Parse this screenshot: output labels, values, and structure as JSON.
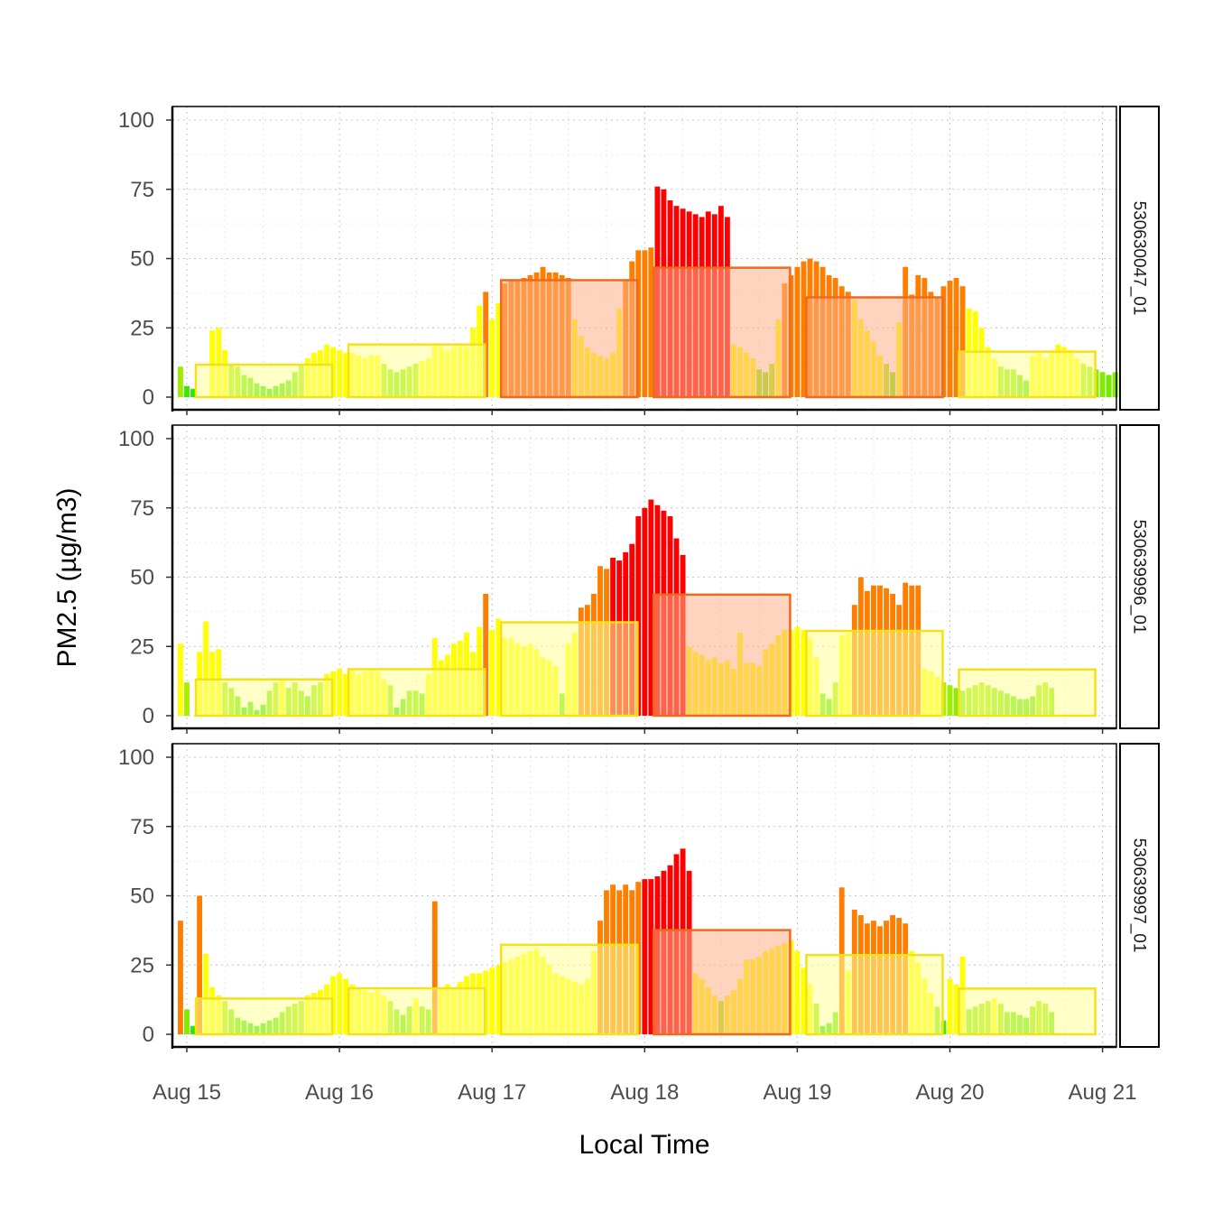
{
  "chart_data": {
    "type": "bar",
    "xlabel": "Local Time",
    "ylabel": "PM2.5 (µg/m3)",
    "ylim": [
      0,
      100
    ],
    "y_ticks": [
      "0",
      "25",
      "50",
      "75",
      "100"
    ],
    "x_ticks": [
      "Aug 15",
      "Aug 16",
      "Aug 17",
      "Aug 18",
      "Aug 19",
      "Aug 20",
      "Aug 21"
    ],
    "x_range_days": [
      -0.1,
      6.1
    ],
    "grid": true,
    "colors": {
      "good": "#00e400",
      "moderate": "#ffff00",
      "usg": "#ff7e00",
      "unhealthy": "#ff0000",
      "daily_fill": {
        "moderate": "#ffff99",
        "usg": "#ffb089"
      },
      "daily_border": {
        "moderate": "#f2e21a",
        "usg": "#ef6a1c"
      }
    },
    "panels": [
      {
        "name": "530630047_01",
        "daily_means": [
          11.7,
          19.0,
          42.2,
          46.7,
          36.0,
          16.4
        ],
        "hourly": [
          11,
          4,
          3,
          null,
          null,
          24,
          25,
          17,
          12,
          11,
          8,
          7,
          5,
          4,
          3,
          4,
          5,
          6,
          9,
          12,
          14,
          16,
          17,
          19,
          18,
          17,
          16,
          16,
          15,
          14,
          15,
          15,
          12,
          10,
          9,
          10,
          11,
          12,
          13,
          14,
          19,
          18,
          17,
          18,
          19,
          18,
          25,
          33,
          38,
          28,
          34,
          41,
          42,
          42,
          43,
          44,
          45,
          47,
          45,
          45,
          44,
          43,
          28,
          22,
          18,
          16,
          15,
          14,
          16,
          32,
          42,
          49,
          53,
          53,
          54,
          76,
          75,
          71,
          69,
          68,
          67,
          66,
          65,
          67,
          66,
          69,
          65,
          19,
          18,
          16,
          14,
          10,
          9,
          12,
          28,
          41,
          44,
          47,
          49,
          50,
          49,
          47,
          44,
          43,
          40,
          38,
          35,
          28,
          24,
          20,
          15,
          12,
          9,
          27,
          47,
          37,
          44,
          43,
          38,
          36,
          40,
          42,
          43,
          40,
          32,
          31,
          25,
          18,
          14,
          11,
          10,
          10,
          8,
          6,
          15,
          16,
          14,
          16,
          19,
          18,
          17,
          14,
          12,
          11,
          10,
          9,
          8,
          9,
          10,
          9,
          7
        ]
      },
      {
        "name": "530639996_01",
        "daily_means": [
          13.1,
          16.8,
          33.7,
          43.7,
          30.6,
          16.7
        ],
        "hourly": [
          26,
          12,
          null,
          23,
          34,
          23,
          24,
          12,
          10,
          7,
          3,
          5,
          2,
          4,
          9,
          12,
          13,
          10,
          12,
          9,
          7,
          11,
          12,
          15,
          16,
          17,
          15,
          17,
          15,
          16,
          17,
          16,
          13,
          11,
          3,
          6,
          9,
          9,
          8,
          15,
          28,
          20,
          22,
          26,
          27,
          30,
          23,
          32,
          44,
          31,
          35,
          28,
          28,
          26,
          25,
          26,
          24,
          21,
          20,
          18,
          8,
          26,
          30,
          39,
          40,
          44,
          54,
          53,
          57,
          56,
          59,
          62,
          72,
          75,
          78,
          76,
          74,
          72,
          64,
          58,
          25,
          23,
          22,
          20,
          21,
          19,
          20,
          17,
          30,
          19,
          19,
          18,
          24,
          26,
          29,
          31,
          31,
          32,
          31,
          28,
          21,
          8,
          6,
          12,
          29,
          30,
          40,
          50,
          45,
          47,
          47,
          46,
          44,
          40,
          48,
          47,
          47,
          17,
          16,
          14,
          12,
          11,
          10,
          9,
          10,
          11,
          12,
          11,
          10,
          9,
          8,
          7,
          6,
          6,
          7,
          11,
          12,
          10
        ]
      },
      {
        "name": "530639997_01",
        "daily_means": [
          12.9,
          16.6,
          32.3,
          37.6,
          28.6,
          16.5
        ],
        "hourly": [
          41,
          9,
          3,
          50,
          29,
          17,
          14,
          12,
          9,
          6,
          5,
          4,
          3,
          4,
          5,
          6,
          8,
          10,
          11,
          12,
          14,
          15,
          16,
          18,
          21,
          22,
          20,
          18,
          17,
          16,
          15,
          16,
          14,
          12,
          9,
          7,
          10,
          13,
          10,
          9,
          48,
          17,
          18,
          17,
          19,
          21,
          22,
          22,
          23,
          24,
          25,
          26,
          27,
          28,
          29,
          30,
          31,
          28,
          25,
          22,
          21,
          20,
          19,
          18,
          20,
          30,
          41,
          52,
          54,
          52,
          54,
          52,
          55,
          56,
          56,
          57,
          59,
          61,
          65,
          67,
          59,
          22,
          20,
          17,
          14,
          12,
          14,
          16,
          20,
          27,
          27,
          28,
          30,
          31,
          32,
          33,
          34,
          30,
          24,
          18,
          11,
          3,
          4,
          8,
          53,
          23,
          45,
          43,
          40,
          41,
          39,
          41,
          43,
          42,
          40,
          30,
          26,
          20,
          15,
          10,
          5,
          20,
          18,
          28,
          9,
          10,
          11,
          12,
          13,
          11,
          8,
          8,
          7,
          6,
          10,
          12,
          11,
          8
        ]
      }
    ]
  }
}
